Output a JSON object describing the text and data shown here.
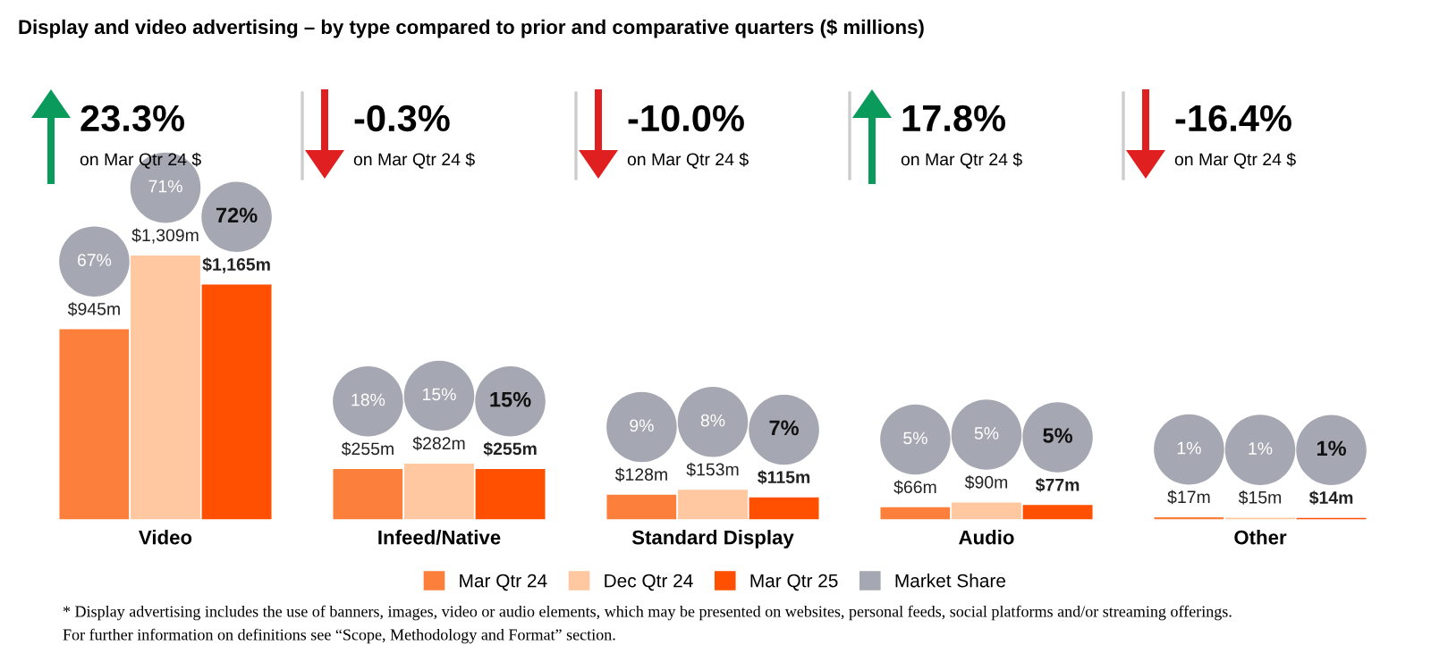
{
  "chart_data": {
    "type": "bar",
    "title": "Display and video advertising – by type compared to prior and comparative quarters ($ millions)",
    "categories": [
      "Video",
      "Infeed/Native",
      "Standard Display",
      "Audio",
      "Other"
    ],
    "series": [
      {
        "name": "Mar Qtr 24",
        "color": "#fd7f3c",
        "values": [
          945,
          255,
          128,
          66,
          17
        ],
        "value_labels": [
          "$945m",
          "$255m",
          "$128m",
          "$66m",
          "$17m"
        ]
      },
      {
        "name": "Dec Qtr 24",
        "color": "#ffc8a0",
        "values": [
          1309,
          282,
          153,
          90,
          15
        ],
        "value_labels": [
          "$1,309m",
          "$282m",
          "$153m",
          "$90m",
          "$15m"
        ]
      },
      {
        "name": "Mar Qtr 25",
        "color": "#fe5000",
        "values": [
          1165,
          255,
          115,
          77,
          14
        ],
        "value_labels": [
          "$1,165m",
          "$255m",
          "$115m",
          "$77m",
          "$14m"
        ]
      }
    ],
    "legend": "bottom",
    "annotations": [
      "23.3%",
      "on Mar Qtr 24 $",
      "-0.3%",
      "on Mar Qtr 24 $",
      "-10.0%",
      "on Mar Qtr 24 $",
      "17.8%",
      "on Mar Qtr 24 $",
      "-16.4%",
      "on Mar Qtr 24 $",
      "67%",
      "71%",
      "72%",
      "18%",
      "15%",
      "15%",
      "9%",
      "8%",
      "7%",
      "5%",
      "5%",
      "5%",
      "1%",
      "1%",
      "1%",
      "Market Share",
      "* Display advertising includes the use of banners, images, video or audio elements, which may be presented on websites, personal feeds, social platforms and/or streaming offerings.",
      "For further information on definitions see “Scope, Methodology and Format” section."
    ]
  }
}
